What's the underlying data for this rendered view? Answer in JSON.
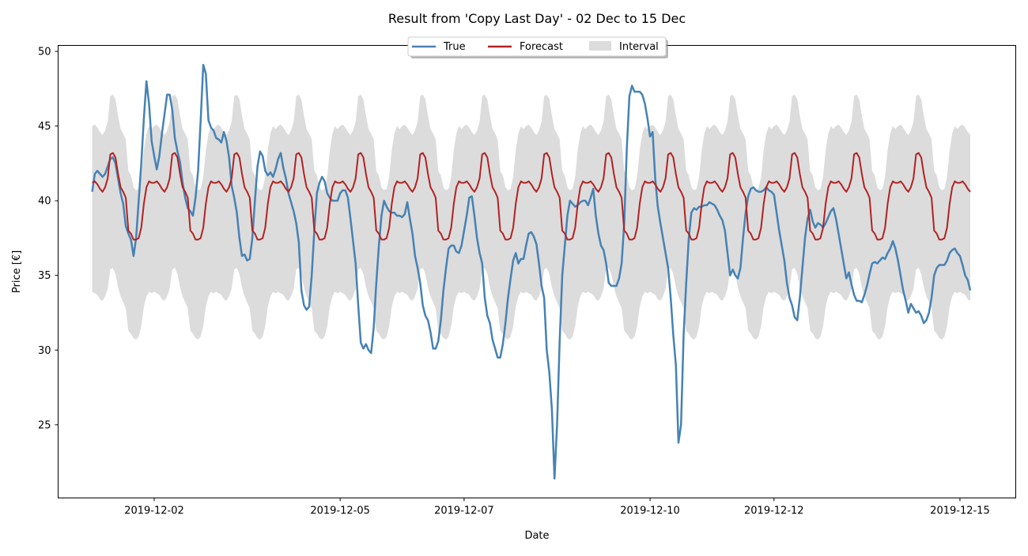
{
  "chart_data": {
    "type": "line",
    "title": "Result from 'Copy Last Day' - 02 Dec to 15 Dec",
    "xlabel": "Date",
    "ylabel": "Price [€]",
    "x_start": "2019-12-01",
    "points_per_day": 24,
    "xlim_days": [
      -0.55,
      14.9
    ],
    "ylim": [
      20.1,
      50.4
    ],
    "x_ticks": [
      {
        "day": 1,
        "label": "2019-12-02"
      },
      {
        "day": 4,
        "label": "2019-12-05"
      },
      {
        "day": 6,
        "label": "2019-12-07"
      },
      {
        "day": 9,
        "label": "2019-12-10"
      },
      {
        "day": 11,
        "label": "2019-12-12"
      },
      {
        "day": 14,
        "label": "2019-12-15"
      }
    ],
    "y_ticks": [
      25,
      30,
      35,
      40,
      45,
      50
    ],
    "legend": {
      "position": "top-center",
      "entries": [
        "True",
        "Forecast",
        "Interval"
      ]
    },
    "colors": {
      "true": "#4682b4",
      "forecast": "#b22222",
      "interval": "#dcdcdc"
    },
    "forecast_daily_profile": [
      41.2,
      41.3,
      41.1,
      40.8,
      40.6,
      40.9,
      41.5,
      43.1,
      43.2,
      42.9,
      41.8,
      40.9,
      40.6,
      40.2,
      38.0,
      37.8,
      37.4,
      37.4,
      37.5,
      38.2,
      39.8,
      40.9,
      41.3,
      41.2
    ],
    "interval_upper_profile": [
      45.0,
      45.1,
      44.9,
      44.6,
      44.4,
      44.7,
      45.3,
      47.0,
      47.1,
      46.8,
      45.7,
      44.8,
      44.5,
      44.1,
      42.0,
      41.7,
      40.9,
      40.7,
      40.8,
      41.6,
      43.4,
      44.5,
      45.0,
      44.8
    ],
    "interval_lower_profile": [
      33.9,
      33.8,
      33.7,
      33.4,
      33.3,
      33.6,
      34.1,
      35.4,
      35.5,
      35.1,
      34.2,
      33.6,
      33.2,
      32.8,
      31.3,
      31.1,
      30.8,
      30.7,
      30.9,
      31.6,
      32.9,
      33.6,
      33.9,
      33.8
    ],
    "true_values": [
      40.6,
      41.8,
      42.0,
      41.8,
      41.6,
      41.8,
      42.3,
      42.8,
      42.9,
      42.5,
      41.5,
      40.5,
      39.8,
      38.3,
      37.8,
      37.4,
      36.3,
      37.5,
      40.0,
      42.5,
      45.5,
      48.0,
      46.5,
      44.0,
      43.0,
      42.1,
      43.0,
      44.5,
      45.8,
      47.1,
      47.1,
      46.1,
      44.2,
      43.3,
      42.6,
      41.2,
      40.2,
      39.5,
      39.3,
      39.0,
      40.2,
      42.0,
      45.4,
      49.1,
      48.5,
      45.4,
      44.9,
      44.7,
      44.2,
      44.1,
      43.9,
      44.6,
      44.0,
      42.9,
      41.0,
      40.2,
      39.2,
      37.5,
      36.3,
      36.4,
      36.0,
      36.1,
      37.5,
      40.0,
      42.3,
      43.3,
      43.0,
      42.0,
      41.7,
      41.9,
      41.6,
      42.1,
      42.8,
      43.2,
      42.2,
      41.5,
      40.5,
      39.9,
      39.3,
      38.5,
      37.2,
      34.0,
      33.0,
      32.7,
      32.9,
      35.0,
      38.0,
      40.5,
      41.2,
      41.6,
      41.3,
      40.5,
      40.2,
      40.0,
      40.0,
      40.0,
      40.5,
      40.7,
      40.7,
      40.2,
      38.8,
      37.3,
      35.8,
      33.0,
      30.5,
      30.1,
      30.4,
      30.0,
      29.8,
      31.5,
      34.5,
      37.0,
      39.0,
      40.0,
      39.6,
      39.3,
      39.2,
      39.2,
      39.0,
      39.0,
      38.9,
      39.1,
      39.9,
      38.8,
      37.8,
      36.3,
      35.5,
      34.5,
      33.0,
      32.3,
      32.0,
      31.2,
      30.1,
      30.1,
      30.6,
      32.0,
      34.0,
      35.5,
      36.8,
      37.0,
      37.0,
      36.6,
      36.5,
      37.0,
      38.0,
      39.0,
      40.2,
      40.3,
      39.0,
      37.5,
      36.5,
      35.8,
      33.5,
      32.3,
      31.8,
      30.7,
      30.1,
      29.5,
      29.5,
      30.4,
      31.8,
      33.5,
      34.8,
      36.0,
      36.5,
      35.8,
      36.1,
      36.1,
      37.0,
      37.8,
      37.9,
      37.6,
      37.1,
      35.8,
      34.3,
      33.5,
      30.0,
      28.5,
      26.0,
      21.4,
      25.0,
      30.6,
      35.0,
      37.0,
      39.0,
      40.0,
      39.8,
      39.6,
      39.7,
      39.9,
      40.0,
      40.0,
      39.7,
      40.2,
      40.8,
      39.0,
      37.8,
      37.0,
      36.7,
      35.8,
      34.5,
      34.3,
      34.3,
      34.3,
      34.8,
      35.8,
      38.5,
      43.5,
      47.0,
      47.7,
      47.3,
      47.3,
      47.3,
      47.1,
      46.5,
      45.5,
      44.3,
      44.6,
      41.5,
      39.6,
      38.5,
      37.5,
      36.5,
      35.5,
      33.5,
      31.0,
      29.0,
      23.8,
      25.0,
      31.0,
      34.5,
      37.5,
      39.2,
      39.5,
      39.4,
      39.6,
      39.6,
      39.7,
      39.7,
      39.9,
      39.8,
      39.7,
      39.4,
      39.0,
      38.7,
      38.0,
      36.5,
      35.0,
      35.4,
      35.0,
      34.8,
      35.5,
      37.5,
      39.2,
      40.3,
      40.8,
      40.9,
      40.7,
      40.6,
      40.6,
      40.7,
      40.9,
      40.7,
      40.6,
      40.4,
      39.2,
      38.0,
      37.0,
      36.0,
      34.5,
      33.5,
      33.0,
      32.2,
      32.0,
      33.5,
      35.5,
      37.5,
      38.8,
      39.4,
      38.6,
      38.2,
      38.5,
      38.4,
      38.2,
      38.5,
      38.9,
      39.3,
      39.5,
      38.8,
      37.8,
      36.8,
      35.8,
      34.8,
      35.2,
      34.4,
      33.7,
      33.3,
      33.3,
      33.2,
      33.7,
      34.3,
      35.1,
      35.8,
      35.9,
      35.8,
      36.0,
      36.2,
      36.1,
      36.5,
      36.8,
      37.3,
      36.8,
      36.0,
      35.0,
      34.0,
      33.3,
      32.5,
      33.1,
      32.8,
      32.5,
      32.6,
      32.3,
      31.8,
      32.0,
      32.5,
      33.5,
      35.0,
      35.5,
      35.7,
      35.7,
      35.7,
      36.0,
      36.5,
      36.7,
      36.8,
      36.5,
      36.3,
      35.7,
      35.0,
      34.7,
      34.0
    ]
  }
}
